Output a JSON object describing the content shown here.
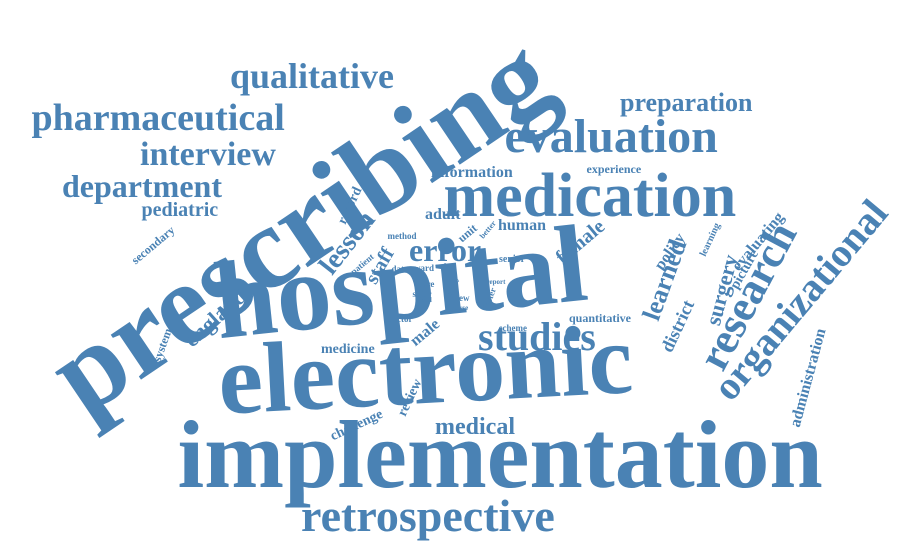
{
  "colors": {
    "text": "#4a82b4",
    "background": "#ffffff"
  },
  "words": [
    "prescribing",
    "hospital",
    "electronic",
    "implementation",
    "medication",
    "evaluation",
    "retrospective",
    "research",
    "organizational",
    "studies",
    "qualitative",
    "pharmaceutical",
    "interview",
    "department",
    "preparation",
    "pediatric",
    "lesson",
    "error",
    "england",
    "medical",
    "learned",
    "surgery",
    "district",
    "administration",
    "policy",
    "evaluating",
    "picture",
    "learning",
    "female",
    "human",
    "adult",
    "staff",
    "record",
    "information",
    "experience",
    "quantitative",
    "medicine",
    "challenge",
    "review",
    "male",
    "system",
    "secondary",
    "patient",
    "method",
    "unit",
    "better",
    "data",
    "ward",
    "order",
    "senior",
    "doctor",
    "care",
    "safer",
    "study",
    "view",
    "report",
    "food",
    "nurse",
    "faster",
    "scheme"
  ]
}
